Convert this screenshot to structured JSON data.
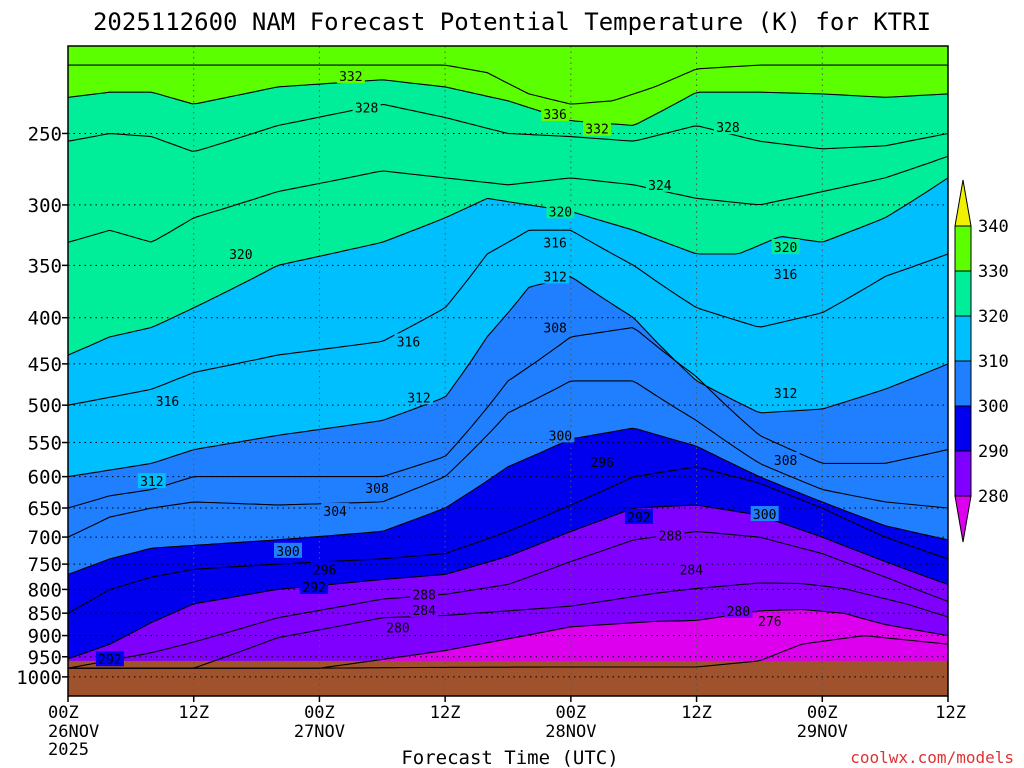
{
  "chart_data": {
    "type": "heatmap",
    "title": "2025112600 NAM Forecast Potential Temperature (K) for KTRI",
    "xlabel": "Forecast Time (UTC)",
    "ylabel": "",
    "credit": "coolwx.com/models",
    "x_ticks": [
      {
        "hours": 0,
        "label": "00Z",
        "date": "26NOV",
        "year": "2025"
      },
      {
        "hours": 12,
        "label": "12Z",
        "date": "",
        "year": ""
      },
      {
        "hours": 24,
        "label": "00Z",
        "date": "27NOV",
        "year": ""
      },
      {
        "hours": 36,
        "label": "12Z",
        "date": "",
        "year": ""
      },
      {
        "hours": 48,
        "label": "00Z",
        "date": "28NOV",
        "year": ""
      },
      {
        "hours": 60,
        "label": "12Z",
        "date": "",
        "year": ""
      },
      {
        "hours": 72,
        "label": "00Z",
        "date": "29NOV",
        "year": ""
      },
      {
        "hours": 84,
        "label": "12Z",
        "date": "",
        "year": ""
      }
    ],
    "xlim": [
      0,
      84
    ],
    "y_ticks": [
      250,
      300,
      350,
      400,
      450,
      500,
      550,
      600,
      650,
      700,
      750,
      800,
      850,
      900,
      950,
      1000
    ],
    "y_tick_labels": [
      "250",
      "300",
      "350",
      "400",
      "450",
      "500",
      "550",
      "600",
      "650",
      "700",
      "750",
      "800",
      "850",
      "900",
      "950",
      "1000"
    ],
    "ylim": [
      200,
      1050
    ],
    "y_scale": "log (pressure, hPa)",
    "grid": true,
    "colorbar": {
      "levels": [
        270,
        280,
        290,
        300,
        310,
        320,
        330,
        340,
        350
      ],
      "labels": [
        "280",
        "290",
        "300",
        "310",
        "320",
        "330",
        "340"
      ],
      "colors": [
        "#dd00ee",
        "#8000ff",
        "#0000ee",
        "#1f7fff",
        "#00bfff",
        "#00ee99",
        "#5cff00",
        "#f0f000"
      ]
    },
    "ground_color": "#a0522d",
    "ground_pressure": 960,
    "series": [
      {
        "name": "276",
        "x": [
          0,
          12,
          24,
          36,
          48,
          60,
          66,
          70,
          76,
          84
        ],
        "y": [
          978,
          978,
          978,
          976,
          975,
          975,
          960,
          920,
          900,
          920
        ]
      },
      {
        "name": "280",
        "x": [
          0,
          12,
          24,
          36,
          48,
          56,
          60,
          66,
          70,
          74,
          78,
          84
        ],
        "y": [
          978,
          978,
          978,
          935,
          880,
          868,
          866,
          845,
          842,
          850,
          875,
          900
        ]
      },
      {
        "name": "284",
        "x": [
          0,
          12,
          20,
          30,
          36,
          48,
          56,
          60,
          66,
          70,
          74,
          80,
          84
        ],
        "y": [
          978,
          978,
          905,
          860,
          855,
          835,
          808,
          798,
          787,
          788,
          798,
          830,
          858
        ]
      },
      {
        "name": "288",
        "x": [
          0,
          8,
          12,
          20,
          30,
          36,
          42,
          48,
          54,
          60,
          66,
          72,
          78,
          84
        ],
        "y": [
          978,
          940,
          915,
          860,
          820,
          810,
          790,
          745,
          705,
          690,
          700,
          730,
          775,
          825
        ]
      },
      {
        "name": "292",
        "x": [
          0,
          4,
          8,
          12,
          20,
          30,
          36,
          42,
          48,
          54,
          60,
          66,
          72,
          78,
          84
        ],
        "y": [
          955,
          920,
          870,
          830,
          800,
          780,
          770,
          735,
          690,
          650,
          645,
          662,
          700,
          745,
          790
        ]
      },
      {
        "name": "296",
        "x": [
          0,
          4,
          8,
          12,
          20,
          30,
          36,
          42,
          48,
          54,
          60,
          66,
          72,
          78,
          84
        ],
        "y": [
          850,
          800,
          775,
          760,
          750,
          740,
          730,
          690,
          645,
          600,
          585,
          610,
          650,
          700,
          740
        ]
      },
      {
        "name": "300",
        "x": [
          0,
          4,
          8,
          12,
          20,
          30,
          36,
          42,
          48,
          54,
          60,
          66,
          72,
          78,
          84
        ],
        "y": [
          770,
          740,
          720,
          715,
          705,
          690,
          650,
          585,
          545,
          530,
          555,
          600,
          640,
          680,
          705
        ]
      },
      {
        "name": "304",
        "x": [
          0,
          4,
          8,
          12,
          20,
          30,
          36,
          42,
          48,
          54,
          60,
          66,
          72,
          78,
          84
        ],
        "y": [
          700,
          665,
          650,
          640,
          645,
          640,
          600,
          510,
          470,
          470,
          520,
          580,
          620,
          640,
          650
        ]
      },
      {
        "name": "308",
        "x": [
          0,
          4,
          8,
          12,
          20,
          30,
          36,
          42,
          48,
          54,
          60,
          66,
          72,
          78,
          84
        ],
        "y": [
          650,
          630,
          620,
          600,
          600,
          600,
          570,
          470,
          420,
          410,
          465,
          540,
          580,
          580,
          560
        ]
      },
      {
        "name": "312",
        "x": [
          0,
          4,
          8,
          12,
          20,
          30,
          36,
          40,
          44,
          48,
          54,
          60,
          66,
          72,
          78,
          84
        ],
        "y": [
          600,
          590,
          580,
          560,
          540,
          520,
          490,
          420,
          370,
          360,
          400,
          470,
          510,
          505,
          480,
          450
        ]
      },
      {
        "name": "316",
        "x": [
          0,
          4,
          8,
          12,
          20,
          30,
          36,
          40,
          44,
          48,
          54,
          60,
          66,
          72,
          78,
          84
        ],
        "y": [
          500,
          490,
          480,
          460,
          440,
          425,
          390,
          340,
          320,
          320,
          350,
          390,
          410,
          395,
          360,
          340
        ]
      },
      {
        "name": "320",
        "x": [
          0,
          4,
          8,
          12,
          20,
          30,
          36,
          40,
          44,
          48,
          54,
          60,
          64,
          68,
          72,
          78,
          84
        ],
        "y": [
          440,
          420,
          410,
          390,
          350,
          330,
          310,
          295,
          300,
          305,
          320,
          340,
          340,
          325,
          330,
          310,
          280
        ]
      },
      {
        "name": "324",
        "x": [
          0,
          4,
          8,
          12,
          20,
          30,
          36,
          42,
          48,
          54,
          60,
          66,
          72,
          78,
          84
        ],
        "y": [
          330,
          320,
          330,
          310,
          290,
          275,
          280,
          285,
          280,
          285,
          295,
          300,
          290,
          280,
          265
        ]
      },
      {
        "name": "328",
        "x": [
          0,
          4,
          8,
          12,
          20,
          30,
          36,
          42,
          48,
          54,
          60,
          66,
          72,
          78,
          84
        ],
        "y": [
          255,
          250,
          252,
          262,
          245,
          232,
          240,
          250,
          252,
          255,
          245,
          255,
          260,
          258,
          250
        ]
      },
      {
        "name": "332",
        "x": [
          0,
          4,
          8,
          12,
          20,
          30,
          36,
          42,
          48,
          54,
          60,
          66,
          72,
          78,
          84
        ],
        "y": [
          228,
          225,
          225,
          232,
          222,
          218,
          222,
          230,
          242,
          245,
          225,
          225,
          226,
          228,
          226
        ]
      },
      {
        "name": "336",
        "x": [
          0,
          12,
          24,
          36,
          40,
          44,
          48,
          52,
          56,
          60,
          66,
          72,
          84
        ],
        "y": [
          210,
          210,
          210,
          210,
          214,
          226,
          232,
          230,
          222,
          212,
          210,
          210,
          210
        ]
      }
    ],
    "annotations": [
      {
        "text": "332",
        "x": 27,
        "y": 216
      },
      {
        "text": "328",
        "x": 28.5,
        "y": 234
      },
      {
        "text": "336",
        "x": 46.5,
        "y": 238
      },
      {
        "text": "332",
        "x": 50.5,
        "y": 247
      },
      {
        "text": "328",
        "x": 63,
        "y": 246
      },
      {
        "text": "324",
        "x": 56.5,
        "y": 285
      },
      {
        "text": "320",
        "x": 47,
        "y": 305
      },
      {
        "text": "320",
        "x": 68.5,
        "y": 334
      },
      {
        "text": "320",
        "x": 16.5,
        "y": 340
      },
      {
        "text": "316",
        "x": 46.5,
        "y": 330
      },
      {
        "text": "316",
        "x": 68.5,
        "y": 358
      },
      {
        "text": "312",
        "x": 46.5,
        "y": 360
      },
      {
        "text": "308",
        "x": 46.5,
        "y": 410
      },
      {
        "text": "316",
        "x": 32.5,
        "y": 425
      },
      {
        "text": "316",
        "x": 9.5,
        "y": 495
      },
      {
        "text": "312",
        "x": 33.5,
        "y": 490
      },
      {
        "text": "312",
        "x": 68.5,
        "y": 485
      },
      {
        "text": "300",
        "x": 47,
        "y": 540
      },
      {
        "text": "296",
        "x": 51,
        "y": 578
      },
      {
        "text": "308",
        "x": 68.5,
        "y": 575
      },
      {
        "text": "308",
        "x": 29.5,
        "y": 618
      },
      {
        "text": "304",
        "x": 25.5,
        "y": 655
      },
      {
        "text": "312",
        "x": 8,
        "y": 607
      },
      {
        "text": "300",
        "x": 66.5,
        "y": 660
      },
      {
        "text": "292",
        "x": 54.5,
        "y": 665
      },
      {
        "text": "288",
        "x": 57.5,
        "y": 697
      },
      {
        "text": "300",
        "x": 21,
        "y": 725
      },
      {
        "text": "296",
        "x": 24.5,
        "y": 760
      },
      {
        "text": "284",
        "x": 59.5,
        "y": 760
      },
      {
        "text": "292",
        "x": 23.5,
        "y": 795
      },
      {
        "text": "288",
        "x": 34,
        "y": 810
      },
      {
        "text": "284",
        "x": 34,
        "y": 843
      },
      {
        "text": "280",
        "x": 64,
        "y": 845
      },
      {
        "text": "276",
        "x": 67,
        "y": 867
      },
      {
        "text": "280",
        "x": 31.5,
        "y": 882
      },
      {
        "text": "292",
        "x": 4,
        "y": 956
      }
    ]
  }
}
